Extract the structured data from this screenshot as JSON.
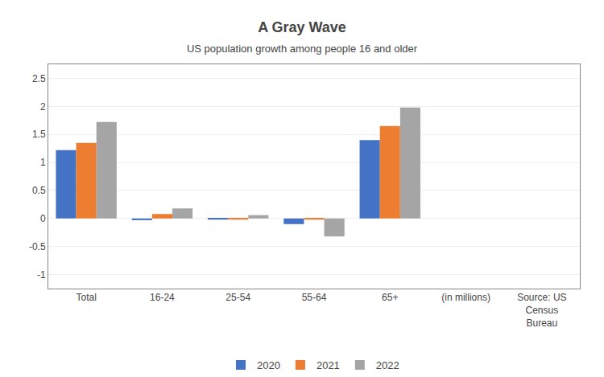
{
  "chart_data": {
    "type": "bar",
    "title": "A Gray Wave",
    "subtitle": "US population growth among people 16 and older",
    "categories": [
      "Total",
      "16-24",
      "25-54",
      "55-64",
      "65+",
      "(in millions)",
      "Source: US\nCensus\nBureau"
    ],
    "series": [
      {
        "name": "2020",
        "color": "#4472C4",
        "values": [
          1.22,
          -0.03,
          -0.02,
          -0.1,
          1.4,
          null,
          null
        ]
      },
      {
        "name": "2021",
        "color": "#ED7D31",
        "values": [
          1.35,
          0.08,
          -0.02,
          -0.02,
          1.65,
          null,
          null
        ]
      },
      {
        "name": "2022",
        "color": "#A5A5A5",
        "values": [
          1.72,
          0.18,
          0.06,
          -0.32,
          1.98,
          null,
          null
        ]
      }
    ],
    "ylim": [
      -1.25,
      2.75
    ],
    "yticks": [
      -1.0,
      -0.5,
      0.0,
      0.5,
      1.0,
      1.5,
      2.0,
      2.5
    ],
    "grid": true,
    "legend": "bottom"
  }
}
